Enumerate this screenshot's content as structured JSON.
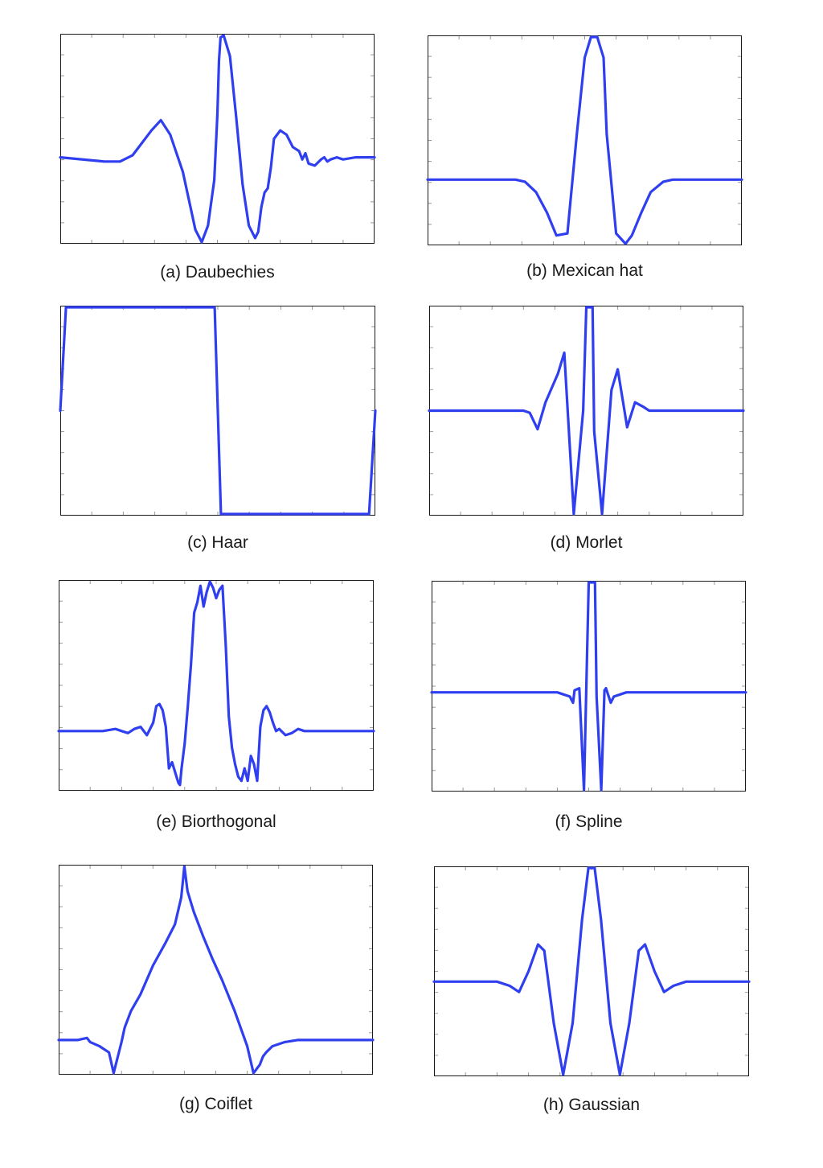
{
  "colors": {
    "line": "#2f3ff0",
    "frame": "#1a1a1a",
    "tick": "#9a9a9a"
  },
  "chart_data": [
    {
      "type": "line",
      "title": "(a) Daubechies",
      "xlim": [
        0,
        1
      ],
      "ylim": [
        0,
        1
      ],
      "grid": false,
      "x": [
        0,
        0.14,
        0.19,
        0.23,
        0.26,
        0.29,
        0.32,
        0.35,
        0.39,
        0.41,
        0.43,
        0.45,
        0.47,
        0.49,
        0.5,
        0.505,
        0.51,
        0.52,
        0.54,
        0.56,
        0.58,
        0.6,
        0.62,
        0.63,
        0.64,
        0.65,
        0.66,
        0.67,
        0.68,
        0.7,
        0.72,
        0.74,
        0.76,
        0.77,
        0.78,
        0.79,
        0.81,
        0.83,
        0.84,
        0.85,
        0.86,
        0.88,
        0.9,
        0.94,
        1
      ],
      "values": [
        0.41,
        0.39,
        0.39,
        0.42,
        0.48,
        0.54,
        0.59,
        0.52,
        0.34,
        0.2,
        0.06,
        0,
        0.08,
        0.3,
        0.62,
        0.88,
        0.99,
        1,
        0.9,
        0.6,
        0.28,
        0.08,
        0.02,
        0.05,
        0.17,
        0.24,
        0.26,
        0.36,
        0.5,
        0.54,
        0.52,
        0.46,
        0.44,
        0.4,
        0.43,
        0.38,
        0.37,
        0.4,
        0.41,
        0.39,
        0.4,
        0.41,
        0.4,
        0.41,
        0.41
      ]
    },
    {
      "type": "line",
      "title": "(b) Mexican hat",
      "xlim": [
        0,
        1
      ],
      "ylim": [
        0,
        1
      ],
      "grid": false,
      "x": [
        0,
        0.25,
        0.3,
        0.34,
        0.38,
        0.41,
        0.44,
        0.48,
        0.51,
        0.53,
        0.55,
        0.56,
        0.58,
        0.6,
        0.62,
        0.66,
        0.69,
        0.72,
        0.75,
        0.8,
        1
      ],
      "values": [
        0.31,
        0.31,
        0.28,
        0.2,
        0.1,
        0,
        0.05,
        0.47,
        0.87,
        1,
        1,
        0.87,
        0.47,
        0.05,
        0,
        0.1,
        0.2,
        0.28,
        0.3,
        0.31,
        0.31
      ],
      "x2": [
        0,
        0.28,
        0.31,
        0.345,
        0.38,
        0.41,
        0.445,
        0.475,
        0.5,
        0.52,
        0.53,
        0.54,
        0.56,
        0.57,
        0.6,
        0.63,
        0.65,
        0.68,
        0.71,
        0.75,
        0.78,
        1
      ],
      "values2": [
        0.31,
        0.31,
        0.3,
        0.25,
        0.15,
        0.04,
        0.05,
        0.53,
        0.9,
        1,
        1,
        1,
        0.9,
        0.53,
        0.05,
        0,
        0.04,
        0.15,
        0.25,
        0.3,
        0.31,
        0.31
      ]
    },
    {
      "type": "line",
      "title": "(c) Haar",
      "xlim": [
        0,
        1
      ],
      "ylim": [
        0,
        1
      ],
      "grid": false,
      "x": [
        0,
        0.018,
        0.49,
        0.51,
        0.98,
        1
      ],
      "values": [
        0.5,
        1,
        1,
        0,
        0,
        0.5
      ]
    },
    {
      "type": "line",
      "title": "(d) Morlet",
      "xlim": [
        0,
        1
      ],
      "ylim": [
        0,
        1
      ],
      "grid": false,
      "x": [
        0,
        0.3,
        0.32,
        0.345,
        0.37,
        0.41,
        0.43,
        0.46,
        0.49,
        0.5,
        0.51,
        0.52,
        0.525,
        0.55,
        0.58,
        0.6,
        0.63,
        0.655,
        0.68,
        0.7,
        1
      ],
      "values": [
        0.5,
        0.5,
        0.49,
        0.41,
        0.54,
        0.68,
        0.78,
        0.0,
        0.5,
        1,
        1,
        1,
        0.4,
        0,
        0.6,
        0.7,
        0.42,
        0.54,
        0.52,
        0.5,
        0.5
      ]
    },
    {
      "type": "line",
      "title": "(e) Biorthogonal",
      "xlim": [
        0,
        1
      ],
      "ylim": [
        0,
        1
      ],
      "grid": false,
      "x": [
        0,
        0.14,
        0.18,
        0.2,
        0.22,
        0.24,
        0.26,
        0.28,
        0.3,
        0.31,
        0.32,
        0.33,
        0.34,
        0.35,
        0.36,
        0.37,
        0.38,
        0.385,
        0.39,
        0.4,
        0.41,
        0.42,
        0.43,
        0.44,
        0.45,
        0.46,
        0.47,
        0.48,
        0.49,
        0.5,
        0.51,
        0.52,
        0.53,
        0.54,
        0.55,
        0.56,
        0.57,
        0.58,
        0.59,
        0.6,
        0.61,
        0.62,
        0.63,
        0.64,
        0.65,
        0.66,
        0.67,
        0.68,
        0.69,
        0.7,
        0.72,
        0.74,
        0.76,
        0.78,
        0.8,
        0.82,
        0.86,
        1
      ],
      "values": [
        0.28,
        0.28,
        0.29,
        0.28,
        0.27,
        0.29,
        0.3,
        0.26,
        0.32,
        0.4,
        0.41,
        0.38,
        0.3,
        0.1,
        0.13,
        0.08,
        0.03,
        0.02,
        0.1,
        0.22,
        0.4,
        0.6,
        0.85,
        0.9,
        0.98,
        0.88,
        0.95,
        1,
        0.97,
        0.92,
        0.96,
        0.98,
        0.7,
        0.35,
        0.2,
        0.12,
        0.06,
        0.04,
        0.1,
        0.04,
        0.16,
        0.12,
        0.04,
        0.3,
        0.38,
        0.4,
        0.37,
        0.32,
        0.28,
        0.29,
        0.26,
        0.27,
        0.29,
        0.28,
        0.28,
        0.28,
        0.28,
        0.28
      ]
    },
    {
      "type": "line",
      "title": "(f) Spline",
      "xlim": [
        0,
        1
      ],
      "ylim": [
        0,
        1
      ],
      "grid": false,
      "x": [
        0,
        0.4,
        0.42,
        0.44,
        0.45,
        0.455,
        0.47,
        0.485,
        0.5,
        0.51,
        0.52,
        0.525,
        0.54,
        0.55,
        0.555,
        0.57,
        0.58,
        0.6,
        0.62,
        0.65,
        1
      ],
      "values": [
        0.47,
        0.47,
        0.46,
        0.45,
        0.42,
        0.48,
        0.49,
        0.0,
        1,
        1,
        1,
        0.45,
        0.0,
        0.48,
        0.49,
        0.42,
        0.45,
        0.46,
        0.47,
        0.47,
        0.47
      ]
    },
    {
      "type": "line",
      "title": "(g) Coiflet",
      "xlim": [
        0,
        1
      ],
      "ylim": [
        0,
        1
      ],
      "grid": false,
      "x": [
        0,
        0.06,
        0.09,
        0.1,
        0.13,
        0.16,
        0.175,
        0.2,
        0.21,
        0.23,
        0.26,
        0.3,
        0.34,
        0.37,
        0.39,
        0.4,
        0.41,
        0.43,
        0.46,
        0.49,
        0.52,
        0.56,
        0.6,
        0.62,
        0.64,
        0.65,
        0.66,
        0.68,
        0.72,
        0.76,
        1
      ],
      "values": [
        0.16,
        0.16,
        0.17,
        0.15,
        0.13,
        0.1,
        0.0,
        0.15,
        0.22,
        0.3,
        0.38,
        0.52,
        0.63,
        0.72,
        0.85,
        1,
        0.88,
        0.78,
        0.66,
        0.55,
        0.45,
        0.3,
        0.13,
        0.0,
        0.04,
        0.08,
        0.1,
        0.13,
        0.15,
        0.16,
        0.16
      ]
    },
    {
      "type": "line",
      "title": "(h) Gaussian",
      "xlim": [
        0,
        1
      ],
      "ylim": [
        0,
        1
      ],
      "grid": false,
      "x": [
        0,
        0.2,
        0.24,
        0.27,
        0.3,
        0.33,
        0.35,
        0.38,
        0.41,
        0.44,
        0.47,
        0.49,
        0.5,
        0.51,
        0.53,
        0.56,
        0.59,
        0.62,
        0.65,
        0.67,
        0.7,
        0.73,
        0.76,
        0.8,
        1
      ],
      "values": [
        0.45,
        0.45,
        0.43,
        0.4,
        0.5,
        0.63,
        0.6,
        0.25,
        0.0,
        0.25,
        0.75,
        1,
        1,
        1,
        0.75,
        0.25,
        0.0,
        0.25,
        0.6,
        0.63,
        0.5,
        0.4,
        0.43,
        0.45,
        0.45
      ]
    }
  ]
}
